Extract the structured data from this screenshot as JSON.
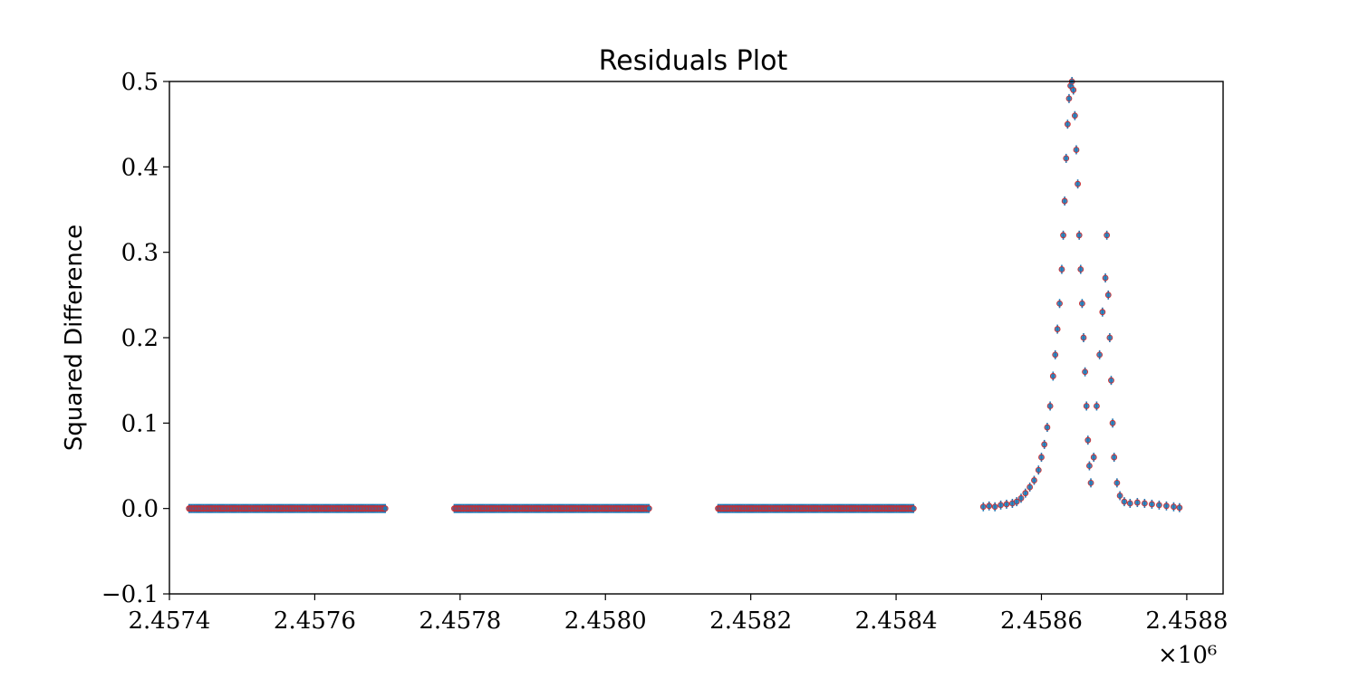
{
  "chart_data": {
    "type": "scatter",
    "title": "Residuals Plot",
    "xlabel": "",
    "ylabel": "Squared Difference",
    "xlim": [
      2457400,
      2458850
    ],
    "ylim": [
      -0.1,
      0.5
    ],
    "x_ticks": [
      2457400,
      2457600,
      2457800,
      2458000,
      2458200,
      2458400,
      2458600,
      2458800
    ],
    "x_tick_labels": [
      "2.4574",
      "2.4576",
      "2.4578",
      "2.4580",
      "2.4582",
      "2.4584",
      "2.4586",
      "2.4588"
    ],
    "x_offset_label": "×10⁶",
    "y_ticks": [
      -0.1,
      0.0,
      0.1,
      0.2,
      0.3,
      0.4,
      0.5
    ],
    "y_tick_labels": [
      "−0.1",
      "0.0",
      "0.1",
      "0.2",
      "0.3",
      "0.4",
      "0.5"
    ],
    "grid": false,
    "legend": "none",
    "point_color": "#1f77b4",
    "edge_color": "#d62728",
    "segments": [
      {
        "x_start": 2457427,
        "x_end": 2457697,
        "y": 0.0
      },
      {
        "x_start": 2457792,
        "x_end": 2458060,
        "y": 0.0
      },
      {
        "x_start": 2458155,
        "x_end": 2458424,
        "y": 0.0
      }
    ],
    "points": [
      [
        2458520,
        0.002
      ],
      [
        2458528,
        0.003
      ],
      [
        2458536,
        0.002
      ],
      [
        2458544,
        0.004
      ],
      [
        2458552,
        0.005
      ],
      [
        2458560,
        0.006
      ],
      [
        2458566,
        0.008
      ],
      [
        2458572,
        0.012
      ],
      [
        2458578,
        0.018
      ],
      [
        2458584,
        0.025
      ],
      [
        2458590,
        0.033
      ],
      [
        2458596,
        0.045
      ],
      [
        2458600,
        0.06
      ],
      [
        2458604,
        0.075
      ],
      [
        2458608,
        0.095
      ],
      [
        2458612,
        0.12
      ],
      [
        2458616,
        0.155
      ],
      [
        2458619,
        0.18
      ],
      [
        2458622,
        0.21
      ],
      [
        2458625,
        0.24
      ],
      [
        2458628,
        0.28
      ],
      [
        2458630,
        0.32
      ],
      [
        2458632,
        0.36
      ],
      [
        2458634,
        0.41
      ],
      [
        2458636,
        0.45
      ],
      [
        2458638,
        0.48
      ],
      [
        2458640,
        0.495
      ],
      [
        2458642,
        0.5
      ],
      [
        2458644,
        0.49
      ],
      [
        2458646,
        0.46
      ],
      [
        2458648,
        0.42
      ],
      [
        2458650,
        0.38
      ],
      [
        2458652,
        0.32
      ],
      [
        2458654,
        0.28
      ],
      [
        2458656,
        0.24
      ],
      [
        2458658,
        0.2
      ],
      [
        2458660,
        0.16
      ],
      [
        2458662,
        0.12
      ],
      [
        2458664,
        0.08
      ],
      [
        2458666,
        0.05
      ],
      [
        2458668,
        0.03
      ],
      [
        2458672,
        0.06
      ],
      [
        2458676,
        0.12
      ],
      [
        2458680,
        0.18
      ],
      [
        2458684,
        0.23
      ],
      [
        2458688,
        0.27
      ],
      [
        2458690,
        0.32
      ],
      [
        2458692,
        0.25
      ],
      [
        2458694,
        0.2
      ],
      [
        2458696,
        0.15
      ],
      [
        2458698,
        0.1
      ],
      [
        2458700,
        0.06
      ],
      [
        2458704,
        0.03
      ],
      [
        2458708,
        0.015
      ],
      [
        2458714,
        0.008
      ],
      [
        2458722,
        0.006
      ],
      [
        2458732,
        0.007
      ],
      [
        2458742,
        0.006
      ],
      [
        2458752,
        0.005
      ],
      [
        2458762,
        0.004
      ],
      [
        2458772,
        0.003
      ],
      [
        2458782,
        0.002
      ],
      [
        2458790,
        0.001
      ]
    ]
  }
}
